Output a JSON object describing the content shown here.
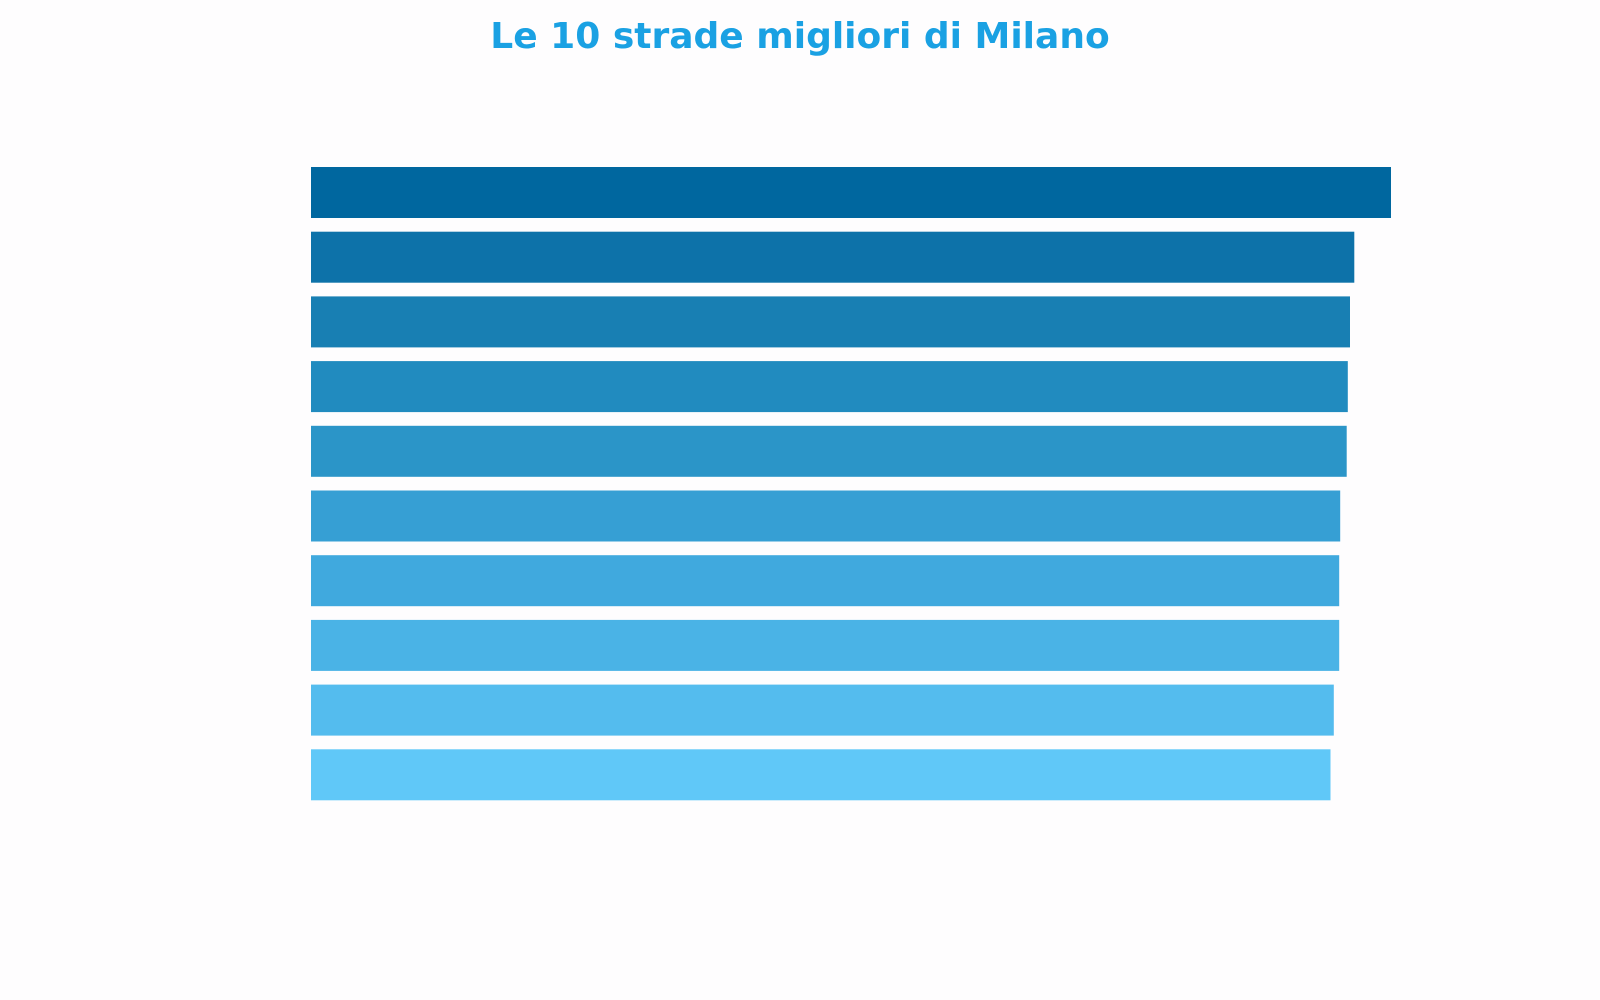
{
  "chart_data": {
    "type": "bar",
    "orientation": "horizontal",
    "title": "Le 10 strade migliori di Milano",
    "title_color": "#1aa1e3",
    "categories": [
      "",
      "",
      "",
      "",
      "",
      "",
      "",
      "",
      "",
      ""
    ],
    "values": [
      100,
      96.6,
      96.2,
      96.0,
      95.9,
      95.3,
      95.2,
      95.2,
      94.7,
      94.4
    ],
    "bar_colors": [
      "#00679f",
      "#0d72a9",
      "#187fb3",
      "#218bbf",
      "#2b95c8",
      "#369fd4",
      "#40a9de",
      "#4ab3e6",
      "#54bcee",
      "#60c8f8"
    ],
    "xlim": [
      0,
      100
    ],
    "grid": false,
    "legend": "none"
  }
}
